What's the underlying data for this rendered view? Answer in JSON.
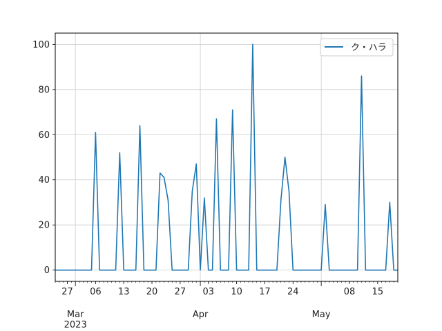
{
  "chart_data": {
    "type": "line",
    "title": "",
    "xlabel": "",
    "ylabel": "",
    "x_start": "2023-02-24",
    "xlim": [
      "2023-02-24",
      "2023-05-20"
    ],
    "ylim": [
      -5,
      105
    ],
    "yticks": [
      0,
      20,
      40,
      60,
      80,
      100
    ],
    "grid": true,
    "legend": {
      "position": "top-right"
    },
    "x_major_ticks": [
      {
        "date": "2023-03-01",
        "label": "Mar",
        "sublabel": "2023"
      },
      {
        "date": "2023-04-01",
        "label": "Apr"
      },
      {
        "date": "2023-05-01",
        "label": "May"
      }
    ],
    "x_minor_ticks": [
      {
        "date": "2023-02-27",
        "label": "27"
      },
      {
        "date": "2023-03-06",
        "label": "06"
      },
      {
        "date": "2023-03-13",
        "label": "13"
      },
      {
        "date": "2023-03-20",
        "label": "20"
      },
      {
        "date": "2023-03-27",
        "label": "27"
      },
      {
        "date": "2023-04-03",
        "label": "03"
      },
      {
        "date": "2023-04-10",
        "label": "10"
      },
      {
        "date": "2023-04-17",
        "label": "17"
      },
      {
        "date": "2023-04-24",
        "label": "24"
      },
      {
        "date": "2023-05-08",
        "label": "08"
      },
      {
        "date": "2023-05-15",
        "label": "15"
      }
    ],
    "series": [
      {
        "name": "ク・ハラ",
        "color": "#1f77b4",
        "points": [
          [
            "2023-02-24",
            0
          ],
          [
            "2023-03-05",
            0
          ],
          [
            "2023-03-06",
            61
          ],
          [
            "2023-03-07",
            0
          ],
          [
            "2023-03-11",
            0
          ],
          [
            "2023-03-12",
            52
          ],
          [
            "2023-03-13",
            0
          ],
          [
            "2023-03-16",
            0
          ],
          [
            "2023-03-17",
            64
          ],
          [
            "2023-03-18",
            0
          ],
          [
            "2023-03-21",
            0
          ],
          [
            "2023-03-22",
            43
          ],
          [
            "2023-03-23",
            41
          ],
          [
            "2023-03-24",
            31
          ],
          [
            "2023-03-25",
            0
          ],
          [
            "2023-03-29",
            0
          ],
          [
            "2023-03-30",
            35
          ],
          [
            "2023-03-31",
            47
          ],
          [
            "2023-04-01",
            0
          ],
          [
            "2023-04-02",
            32
          ],
          [
            "2023-04-03",
            0
          ],
          [
            "2023-04-04",
            0
          ],
          [
            "2023-04-05",
            67
          ],
          [
            "2023-04-06",
            0
          ],
          [
            "2023-04-08",
            0
          ],
          [
            "2023-04-09",
            71
          ],
          [
            "2023-04-10",
            0
          ],
          [
            "2023-04-13",
            0
          ],
          [
            "2023-04-14",
            100
          ],
          [
            "2023-04-15",
            0
          ],
          [
            "2023-04-20",
            0
          ],
          [
            "2023-04-21",
            31
          ],
          [
            "2023-04-22",
            50
          ],
          [
            "2023-04-23",
            35
          ],
          [
            "2023-04-24",
            0
          ],
          [
            "2023-05-01",
            0
          ],
          [
            "2023-05-02",
            29
          ],
          [
            "2023-05-03",
            0
          ],
          [
            "2023-05-10",
            0
          ],
          [
            "2023-05-11",
            86
          ],
          [
            "2023-05-12",
            0
          ],
          [
            "2023-05-17",
            0
          ],
          [
            "2023-05-18",
            30
          ],
          [
            "2023-05-19",
            0
          ],
          [
            "2023-05-20",
            0
          ]
        ]
      }
    ]
  }
}
